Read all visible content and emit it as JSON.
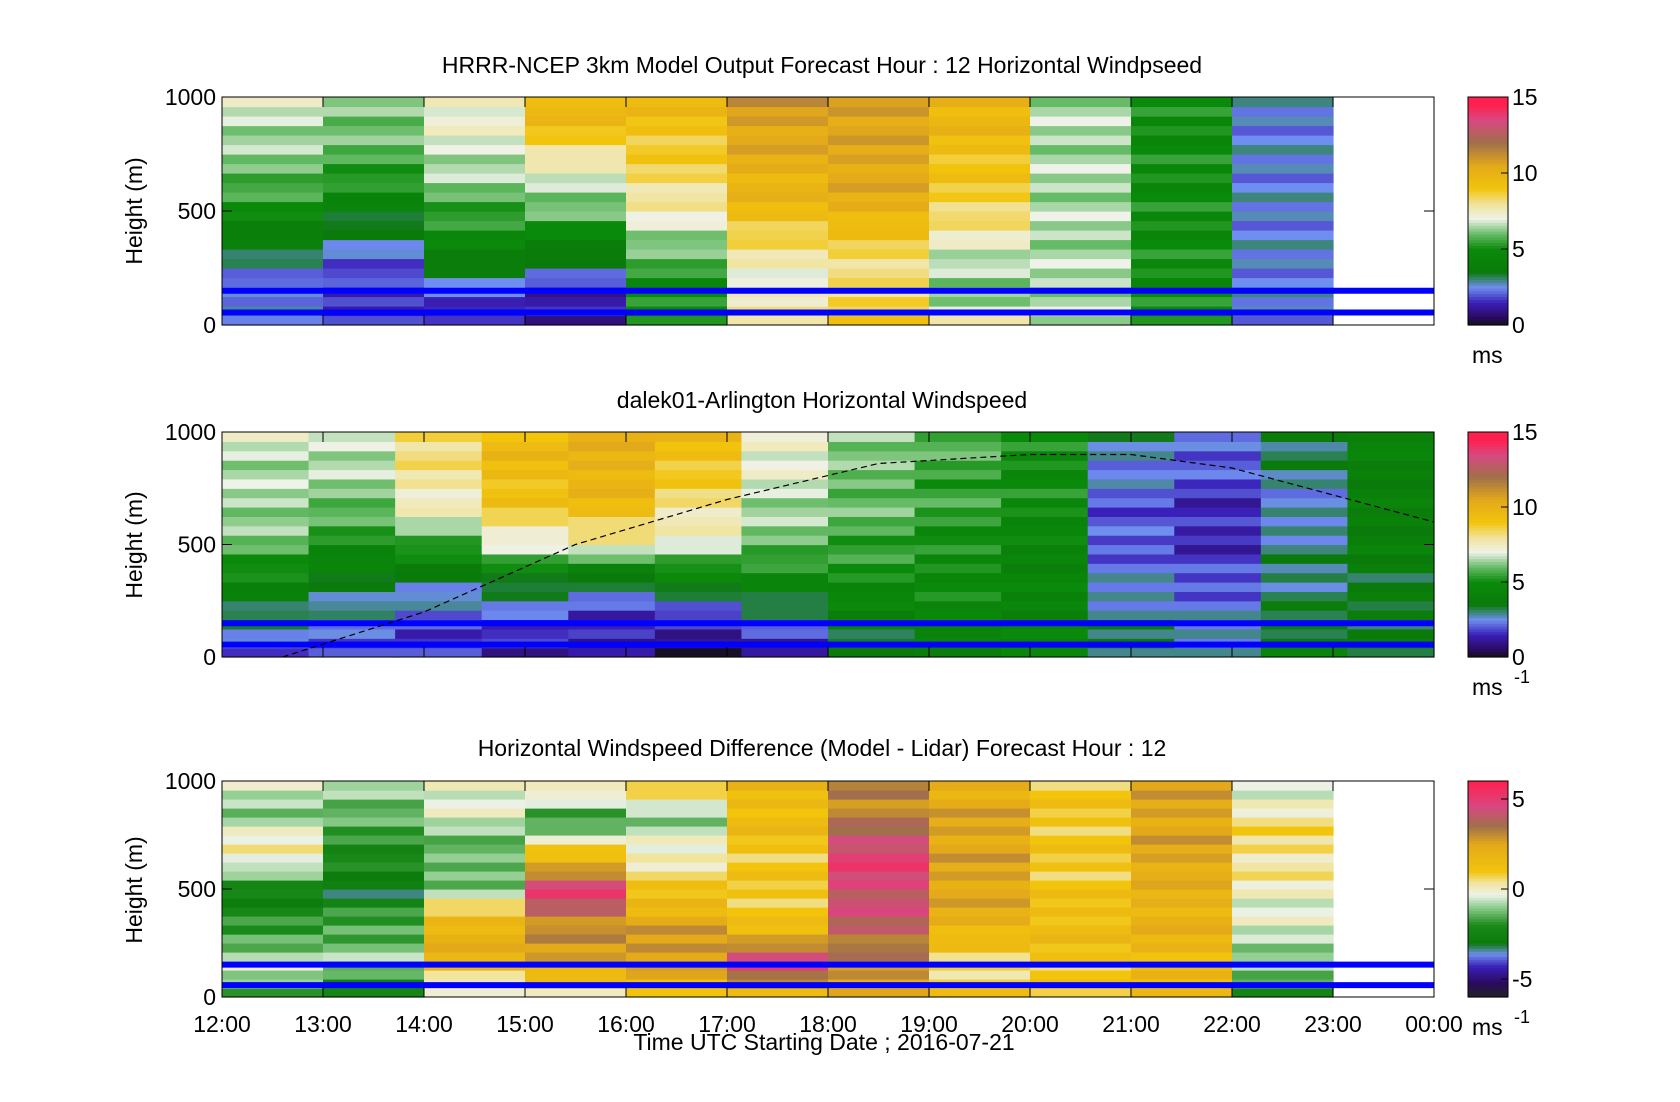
{
  "figure": {
    "xlabel": "Time UTC  Starting Date ; 2016-07-21"
  },
  "chart_data": [
    {
      "type": "heatmap",
      "title": "HRRR-NCEP 3km Model Output   Forecast Hour : 12 Horizontal Windpseed",
      "ylabel": "Height (m)",
      "ylim": [
        0,
        1000
      ],
      "yticks": [
        "0",
        "500",
        "1000"
      ],
      "colorbar": {
        "label": "ms",
        "label_sup": "",
        "ticks": [
          "0",
          "5",
          "10",
          "15"
        ],
        "range": [
          0,
          15
        ],
        "cmap": "speed"
      },
      "x_hours": [
        12,
        13,
        14,
        15,
        16,
        17,
        18,
        19,
        20,
        21,
        22,
        23
      ],
      "grid": [
        [
          3,
          2,
          1,
          1,
          5,
          8.5,
          9.5,
          7.5,
          6.5,
          5,
          2.5
        ],
        [
          2,
          1.5,
          2.5,
          1.5,
          5,
          7,
          8,
          6,
          6.5,
          5,
          2.5
        ],
        [
          3.5,
          2.5,
          4.5,
          4,
          6,
          8,
          8.5,
          7,
          6.5,
          5,
          2.5
        ],
        [
          5,
          4,
          5.5,
          6,
          7.5,
          9.5,
          10,
          8.5,
          6.5,
          5,
          2.5
        ],
        [
          6,
          5.5,
          6.5,
          7,
          8.5,
          10,
          10.5,
          9,
          6.5,
          5,
          2.5
        ],
        [
          6.5,
          6,
          7,
          9,
          9,
          10.5,
          10.5,
          9.5,
          6.5,
          5,
          2.5
        ],
        [
          7,
          6.5,
          7.5,
          10,
          9.5,
          11,
          11,
          10,
          6.5,
          5,
          2.5
        ]
      ],
      "lines_m": [
        55,
        150
      ]
    },
    {
      "type": "heatmap",
      "title": "dalek01-Arlington  Horizontal Windspeed",
      "ylabel": "Height (m)",
      "ylim": [
        0,
        1000
      ],
      "yticks": [
        "0",
        "500",
        "1000"
      ],
      "colorbar": {
        "label": "ms",
        "label_sup": "-1",
        "ticks": [
          "0",
          "5",
          "10",
          "15"
        ],
        "range": [
          0,
          15
        ],
        "cmap": "speed"
      },
      "x_hours": [
        12,
        13,
        14,
        15,
        16,
        17,
        18,
        19,
        20,
        21,
        22,
        23
      ],
      "grid": [
        [
          2,
          2,
          1.5,
          1,
          1,
          0.5,
          1,
          3,
          4,
          4.5,
          3.5,
          3,
          4,
          3.5
        ],
        [
          3,
          2.5,
          2,
          2,
          1.5,
          1.5,
          2.5,
          4,
          4.5,
          4.5,
          3,
          2.5,
          3.5,
          3.5
        ],
        [
          4.5,
          3.5,
          3,
          3.5,
          3,
          4,
          4.5,
          5,
          5,
          4.5,
          2.5,
          2,
          3,
          3.5
        ],
        [
          6,
          5,
          5.5,
          7,
          7.5,
          7,
          6,
          5.5,
          5,
          4.5,
          2,
          1.5,
          3,
          4
        ],
        [
          6.5,
          6,
          7.5,
          9,
          9.5,
          8,
          6.5,
          6,
          5.5,
          5,
          2,
          1.5,
          2.5,
          4
        ],
        [
          6.5,
          6.5,
          8,
          9.5,
          10,
          9,
          7,
          6,
          5.5,
          5,
          2.5,
          2,
          3,
          4
        ],
        [
          7,
          7,
          8.5,
          9.5,
          10,
          9.5,
          7.5,
          6.5,
          6,
          5,
          3,
          2.5,
          3.5,
          4.5
        ]
      ],
      "lines_m": [
        55,
        150
      ],
      "dashed_curve_m": [
        [
          12.6,
          0
        ],
        [
          14,
          200
        ],
        [
          15.5,
          500
        ],
        [
          17,
          700
        ],
        [
          18.5,
          860
        ],
        [
          20,
          900
        ],
        [
          21,
          900
        ],
        [
          22,
          840
        ],
        [
          23,
          720
        ],
        [
          24,
          600
        ]
      ]
    },
    {
      "type": "heatmap",
      "title": "Horizontal Windspeed Difference (Model - Lidar) Forecast Hour : 12",
      "ylabel": "Height (m)",
      "ylim": [
        0,
        1000
      ],
      "yticks": [
        "0",
        "500",
        "1000"
      ],
      "xticks": [
        "12:00",
        "13:00",
        "14:00",
        "15:00",
        "16:00",
        "17:00",
        "18:00",
        "19:00",
        "20:00",
        "21:00",
        "22:00",
        "23:00",
        "00:00"
      ],
      "colorbar": {
        "label": "ms",
        "label_sup": "-1",
        "ticks": [
          "-5",
          "0",
          "5"
        ],
        "range": [
          -6,
          6
        ],
        "cmap": "diff"
      },
      "x_hours": [
        12,
        13,
        14,
        15,
        16,
        17,
        18,
        19,
        20,
        21,
        22,
        23
      ],
      "grid": [
        [
          -1.5,
          -2.5,
          -1,
          0,
          0.5,
          1.5,
          2.5,
          1,
          1,
          1.5,
          -2
        ],
        [
          -0.5,
          -1,
          2,
          2.5,
          3,
          5,
          3,
          0.5,
          1,
          1.5,
          -1
        ],
        [
          -2,
          -1.5,
          2,
          3,
          2.5,
          1,
          4,
          2,
          1.5,
          2,
          -0.5
        ],
        [
          -2.5,
          -3,
          -1,
          5,
          1,
          1,
          4.5,
          2.5,
          1,
          2,
          0
        ],
        [
          0.5,
          -2,
          -1.5,
          1,
          0,
          1,
          5,
          2.5,
          1,
          2.5,
          0.5
        ],
        [
          -1,
          -1.5,
          -0.5,
          -2,
          -1,
          1.5,
          3,
          2.5,
          1,
          2.5,
          0.5
        ],
        [
          -0.5,
          -0.5,
          0,
          1,
          1,
          1.5,
          3.5,
          2,
          1,
          2.5,
          -1
        ]
      ],
      "lines_m": [
        55,
        150
      ]
    }
  ]
}
